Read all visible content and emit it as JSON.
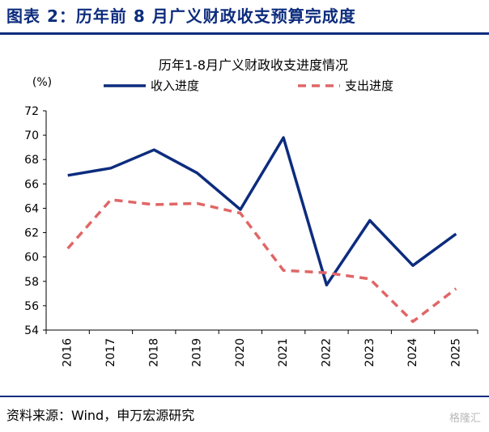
{
  "figure": {
    "title": "图表 2：历年前 8 月广义财政收支预算完成度",
    "source": "资料来源：Wind，申万宏源研究",
    "watermark": "格隆汇"
  },
  "chart_data": {
    "type": "line",
    "title": "历年1-8月广义财政收支进度情况",
    "ylabel": "(%)",
    "xlabel": "",
    "categories": [
      "2016",
      "2017",
      "2018",
      "2019",
      "2020",
      "2021",
      "2022",
      "2023",
      "2024",
      "2025"
    ],
    "ylim": [
      54,
      72
    ],
    "yticks": [
      54,
      56,
      58,
      60,
      62,
      64,
      66,
      68,
      70,
      72
    ],
    "grid": false,
    "legend": "top",
    "series": [
      {
        "name": "收入进度",
        "color": "#0d2c7e",
        "style": "solid",
        "values": [
          66.7,
          67.3,
          68.8,
          66.9,
          63.9,
          69.8,
          57.7,
          63.0,
          59.3,
          61.9
        ]
      },
      {
        "name": "支出进度",
        "color": "#e06666",
        "style": "dashed",
        "values": [
          60.7,
          64.7,
          64.3,
          64.4,
          63.6,
          58.9,
          58.7,
          58.2,
          54.7,
          57.4
        ]
      }
    ]
  }
}
